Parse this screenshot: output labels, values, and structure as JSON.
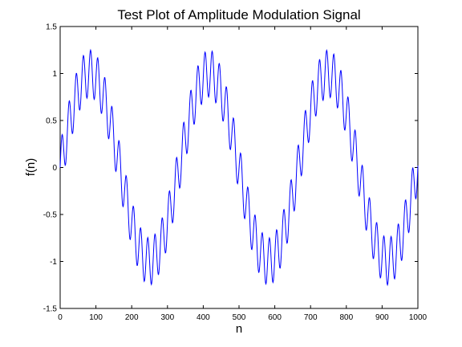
{
  "chart_data": {
    "type": "line",
    "title": "Test Plot of Amplitude Modulation Signal",
    "xlabel": "n",
    "ylabel": "f(n)",
    "xlim": [
      0,
      1000
    ],
    "ylim": [
      -1.5,
      1.5
    ],
    "xticks": [
      0,
      100,
      200,
      300,
      400,
      500,
      600,
      700,
      800,
      900,
      1000
    ],
    "yticks": [
      -1.5,
      -1,
      -0.5,
      0,
      0.5,
      1,
      1.5
    ],
    "xtick_labels": [
      "0",
      "100",
      "200",
      "300",
      "400",
      "500",
      "600",
      "700",
      "800",
      "900",
      "1000"
    ],
    "ytick_labels": [
      "-1.5",
      "-1",
      "-0.5",
      "0",
      "0.5",
      "1",
      "1.5"
    ],
    "grid": false,
    "line_color": "#0000ff",
    "series": [
      {
        "formula": "f(n) = sin(2*pi*n/333) + 0.25*sin(2*pi*n/20)",
        "n_range": [
          0,
          1000
        ],
        "step": 1
      }
    ]
  }
}
